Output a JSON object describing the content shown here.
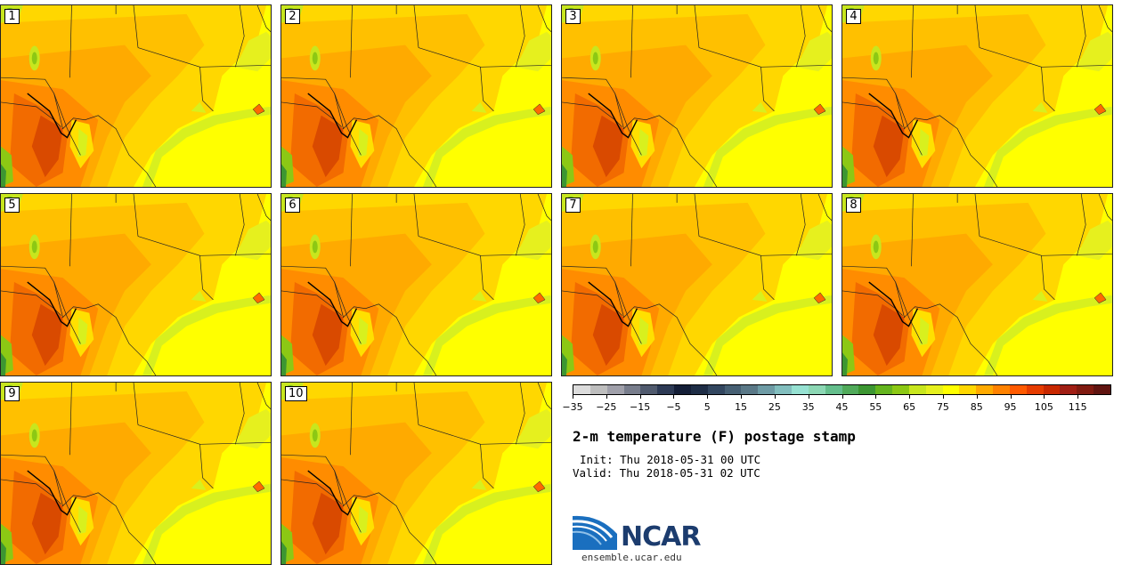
{
  "members": [
    "1",
    "2",
    "3",
    "4",
    "5",
    "6",
    "7",
    "8",
    "9",
    "10"
  ],
  "colorbar": {
    "colors": [
      "#dcdcdc",
      "#bebebe",
      "#a0a0aa",
      "#787d8c",
      "#505a6e",
      "#2d3a55",
      "#141e37",
      "#1e2d46",
      "#32465f",
      "#465f73",
      "#5a7887",
      "#6e9ba5",
      "#82bebe",
      "#96e1d2",
      "#8cd7b4",
      "#64be8c",
      "#50aa5a",
      "#3c9632",
      "#64b41e",
      "#8cc814",
      "#c8e61e",
      "#e6f01e",
      "#ffff00",
      "#ffd700",
      "#ffaa00",
      "#ff8200",
      "#ff5a00",
      "#e63c00",
      "#c82800",
      "#a01e14",
      "#801a10",
      "#601410"
    ],
    "tick_labels": [
      "−35",
      "−25",
      "−15",
      "−5",
      "5",
      "15",
      "25",
      "35",
      "45",
      "55",
      "65",
      "75",
      "85",
      "95",
      "105",
      "115"
    ]
  },
  "title": "2-m temperature (F) postage stamp",
  "init": "Init: Thu 2018-05-31 00 UTC",
  "valid": "Valid: Thu 2018-05-31 02 UTC",
  "logo": {
    "text": "NCAR",
    "url": "ensemble.ucar.edu"
  }
}
